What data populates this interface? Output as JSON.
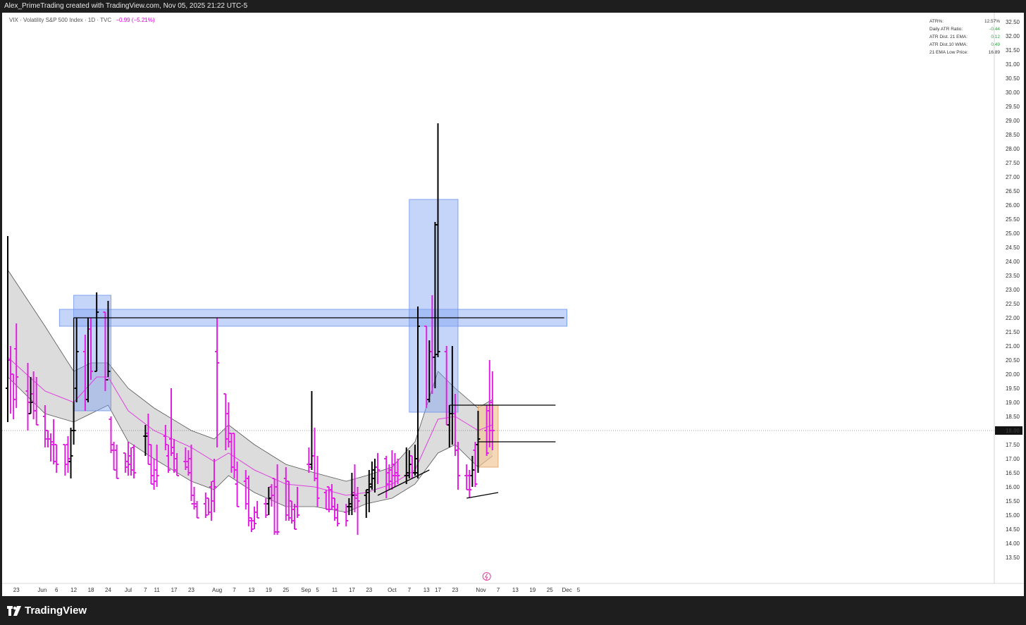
{
  "header": {
    "title": "Alex_PrimeTrading created with TradingView.com, Nov 05, 2025 21:22 UTC-5"
  },
  "legend": {
    "symbol": "VIX · Volatility S&P 500 Index · 1D · TVC",
    "change": "−0.99 (−5.21%)"
  },
  "stats": [
    {
      "label": "ATR%:",
      "value": "12.57%",
      "color": "#333333"
    },
    {
      "label": "Daily ATR Ratio:",
      "value": "-0.44",
      "color": "#2e9e3e"
    },
    {
      "label": "ATR Dist. 21 EMA:",
      "value": "0.12",
      "color": "#2e9e3e"
    },
    {
      "label": "ATR Dist.10 WMA:",
      "value": "0.49",
      "color": "#2e9e3e"
    },
    {
      "label": "21 EMA Low Price:",
      "value": "16.89",
      "color": "#333333"
    }
  ],
  "brand": {
    "name": "TradingView"
  },
  "colors": {
    "down": "#e020e0",
    "up": "#000000",
    "ema": "#e040e0",
    "band_fill": "#d8d8d8",
    "box_fill": "#7ea2f2",
    "orange_box": "#f0c89a"
  },
  "chart_data": {
    "type": "ohlc",
    "ylim": [
      13.25,
      32.75
    ],
    "y_ticks": [
      "13.50",
      "14.00",
      "14.50",
      "15.00",
      "15.50",
      "16.00",
      "16.50",
      "17.00",
      "17.50",
      "18.00",
      "18.50",
      "19.00",
      "19.50",
      "20.00",
      "20.50",
      "21.00",
      "21.50",
      "22.00",
      "22.50",
      "23.00",
      "23.50",
      "24.00",
      "24.50",
      "25.00",
      "25.50",
      "26.00",
      "26.50",
      "27.00",
      "27.50",
      "28.00",
      "28.50",
      "29.00",
      "29.50",
      "30.00",
      "30.50",
      "31.00",
      "31.50",
      "32.00",
      "32.50"
    ],
    "x_labels": [
      "23",
      "Jun",
      "6",
      "12",
      "18",
      "24",
      "Jul",
      "7",
      "11",
      "17",
      "23",
      "Aug",
      "7",
      "13",
      "19",
      "25",
      "Sep",
      "5",
      "11",
      "17",
      "23",
      "Oct",
      "7",
      "13",
      "17",
      "23",
      "Nov",
      "7",
      "13",
      "19",
      "25",
      "Dec",
      "5"
    ],
    "x_label_dates": [
      "2025-05-23",
      "2025-06-01",
      "2025-06-06",
      "2025-06-12",
      "2025-06-18",
      "2025-06-24",
      "2025-07-01",
      "2025-07-07",
      "2025-07-11",
      "2025-07-17",
      "2025-07-23",
      "2025-08-01",
      "2025-08-07",
      "2025-08-13",
      "2025-08-19",
      "2025-08-25",
      "2025-09-01",
      "2025-09-05",
      "2025-09-11",
      "2025-09-17",
      "2025-09-23",
      "2025-10-01",
      "2025-10-07",
      "2025-10-13",
      "2025-10-17",
      "2025-10-23",
      "2025-11-01",
      "2025-11-07",
      "2025-11-13",
      "2025-11-19",
      "2025-11-25",
      "2025-12-01",
      "2025-12-05"
    ],
    "last_price": "18.00",
    "bars": [
      [
        "2025-05-20",
        19.5,
        24.9,
        18.3,
        20.5
      ],
      [
        "2025-05-21",
        20.5,
        21.0,
        18.6,
        20.0
      ],
      [
        "2025-05-22",
        20.0,
        20.0,
        18.4,
        19.1
      ],
      [
        "2025-05-23",
        20.9,
        21.8,
        18.8,
        19.9
      ],
      [
        "2025-05-27",
        19.4,
        20.4,
        18.0,
        19.0
      ],
      [
        "2025-05-28",
        18.6,
        19.9,
        18.6,
        19.0
      ],
      [
        "2025-05-29",
        19.3,
        20.1,
        18.4,
        18.7
      ],
      [
        "2025-05-30",
        18.7,
        19.9,
        18.2,
        18.2
      ],
      [
        "2025-06-02",
        18.5,
        18.9,
        17.4,
        17.7
      ],
      [
        "2025-06-03",
        18.0,
        18.0,
        17.4,
        17.7
      ],
      [
        "2025-06-04",
        17.7,
        17.9,
        16.9,
        17.6
      ],
      [
        "2025-06-05",
        17.5,
        18.4,
        16.8,
        16.9
      ],
      [
        "2025-06-06",
        17.5,
        17.5,
        16.5,
        16.8
      ],
      [
        "2025-06-09",
        17.5,
        17.5,
        16.4,
        16.8
      ],
      [
        "2025-06-10",
        17.5,
        17.8,
        16.5,
        17.0
      ],
      [
        "2025-06-11",
        16.9,
        18.1,
        16.3,
        17.1
      ],
      [
        "2025-06-12",
        18.0,
        19.0,
        17.5,
        18.0
      ],
      [
        "2025-06-13",
        19.5,
        22.0,
        19.0,
        20.8
      ],
      [
        "2025-06-16",
        20.8,
        21.4,
        18.7,
        19.1
      ],
      [
        "2025-06-17",
        19.1,
        22.0,
        19.0,
        21.6
      ],
      [
        "2025-06-18",
        21.6,
        22.0,
        19.8,
        20.1
      ],
      [
        "2025-06-20",
        20.1,
        22.9,
        20.1,
        22.2
      ],
      [
        "2025-06-23",
        22.2,
        22.2,
        19.4,
        19.8
      ],
      [
        "2025-06-24",
        19.8,
        22.6,
        19.9,
        20.1
      ],
      [
        "2025-06-25",
        18.4,
        18.5,
        17.2,
        17.3
      ],
      [
        "2025-06-26",
        17.5,
        17.6,
        16.6,
        16.6
      ],
      [
        "2025-06-27",
        17.3,
        17.5,
        16.3,
        16.3
      ],
      [
        "2025-06-30",
        17.2,
        17.2,
        16.5,
        16.7
      ],
      [
        "2025-07-01",
        16.9,
        17.6,
        16.4,
        16.8
      ],
      [
        "2025-07-02",
        17.1,
        17.4,
        16.4,
        16.6
      ],
      [
        "2025-07-03",
        17.4,
        17.5,
        16.3,
        16.5
      ],
      [
        "2025-07-07",
        17.8,
        18.2,
        17.1,
        17.8
      ],
      [
        "2025-07-08",
        17.9,
        18.6,
        16.8,
        16.8
      ],
      [
        "2025-07-09",
        17.5,
        17.5,
        16.1,
        16.1
      ],
      [
        "2025-07-10",
        16.4,
        17.0,
        15.9,
        16.2
      ],
      [
        "2025-07-11",
        16.6,
        17.5,
        16.0,
        16.4
      ],
      [
        "2025-07-14",
        17.8,
        18.2,
        17.3,
        17.5
      ],
      [
        "2025-07-15",
        17.1,
        17.5,
        16.5,
        16.6
      ],
      [
        "2025-07-16",
        17.7,
        19.5,
        17.1,
        17.2
      ],
      [
        "2025-07-17",
        17.4,
        17.7,
        16.5,
        16.6
      ],
      [
        "2025-07-18",
        17.0,
        17.2,
        16.4,
        16.4
      ],
      [
        "2025-07-21",
        16.9,
        17.4,
        16.6,
        16.7
      ],
      [
        "2025-07-22",
        16.9,
        17.3,
        16.4,
        16.5
      ],
      [
        "2025-07-23",
        17.0,
        17.5,
        15.5,
        15.4
      ],
      [
        "2025-07-24",
        15.7,
        16.0,
        15.2,
        15.4
      ],
      [
        "2025-07-25",
        15.3,
        15.5,
        14.9,
        14.9
      ],
      [
        "2025-07-28",
        15.4,
        15.8,
        14.9,
        15.0
      ],
      [
        "2025-07-29",
        15.6,
        15.6,
        15.0,
        15.1
      ],
      [
        "2025-07-30",
        16.0,
        16.2,
        14.8,
        15.5
      ],
      [
        "2025-07-31",
        16.2,
        17.0,
        15.1,
        16.0
      ],
      [
        "2025-08-01",
        20.8,
        22.0,
        17.4,
        20.4
      ],
      [
        "2025-08-04",
        19.3,
        19.3,
        17.3,
        17.7
      ],
      [
        "2025-08-05",
        18.6,
        19.0,
        17.4,
        17.6
      ],
      [
        "2025-08-06",
        17.9,
        17.9,
        16.5,
        16.7
      ],
      [
        "2025-08-07",
        17.9,
        17.9,
        16.3,
        16.6
      ],
      [
        "2025-08-08",
        16.1,
        16.9,
        15.3,
        15.3
      ],
      [
        "2025-08-11",
        16.2,
        16.6,
        15.2,
        15.4
      ],
      [
        "2025-08-12",
        16.3,
        16.4,
        14.6,
        14.8
      ],
      [
        "2025-08-13",
        14.9,
        14.9,
        14.4,
        14.5
      ],
      [
        "2025-08-14",
        14.8,
        15.3,
        14.5,
        14.7
      ],
      [
        "2025-08-15",
        15.1,
        15.5,
        14.9,
        14.9
      ],
      [
        "2025-08-18",
        15.4,
        15.6,
        14.9,
        15.0
      ],
      [
        "2025-08-19",
        15.4,
        16.0,
        15.0,
        15.6
      ],
      [
        "2025-08-20",
        16.0,
        16.1,
        15.3,
        15.7
      ],
      [
        "2025-08-21",
        16.3,
        16.3,
        14.3,
        14.4
      ],
      [
        "2025-08-22",
        16.0,
        16.8,
        14.3,
        14.4
      ],
      [
        "2025-08-25",
        16.3,
        16.7,
        14.8,
        15.0
      ],
      [
        "2025-08-26",
        16.2,
        16.2,
        14.8,
        14.9
      ],
      [
        "2025-08-27",
        15.5,
        15.5,
        14.7,
        14.8
      ],
      [
        "2025-08-28",
        15.2,
        15.4,
        14.5,
        14.5
      ],
      [
        "2025-08-29",
        15.3,
        16.0,
        14.9,
        15.0
      ],
      [
        "2025-09-02",
        16.8,
        17.4,
        16.5,
        16.7
      ],
      [
        "2025-09-03",
        16.8,
        19.4,
        16.6,
        17.1
      ],
      [
        "2025-09-04",
        17.1,
        18.1,
        16.2,
        16.3
      ],
      [
        "2025-09-05",
        16.3,
        17.1,
        15.3,
        15.6
      ],
      [
        "2025-09-08",
        15.8,
        15.9,
        15.2,
        15.2
      ],
      [
        "2025-09-09",
        16.0,
        16.0,
        15.1,
        15.2
      ],
      [
        "2025-09-10",
        15.9,
        16.1,
        15.2,
        15.3
      ],
      [
        "2025-09-11",
        15.6,
        15.6,
        14.8,
        14.9
      ],
      [
        "2025-09-12",
        15.2,
        15.4,
        14.6,
        14.7
      ],
      [
        "2025-09-15",
        15.1,
        15.4,
        14.6,
        14.8
      ],
      [
        "2025-09-16",
        15.3,
        15.6,
        15.0,
        15.4
      ],
      [
        "2025-09-17",
        15.3,
        16.5,
        15.0,
        15.7
      ],
      [
        "2025-09-18",
        15.8,
        16.8,
        15.1,
        15.6
      ],
      [
        "2025-09-19",
        15.7,
        16.0,
        14.3,
        15.5
      ],
      [
        "2025-09-22",
        15.7,
        15.9,
        14.9,
        15.9
      ],
      [
        "2025-09-23",
        15.8,
        16.6,
        15.1,
        16.1
      ],
      [
        "2025-09-24",
        16.0,
        16.9,
        15.9,
        16.3
      ],
      [
        "2025-09-25",
        16.6,
        17.0,
        15.8,
        16.7
      ],
      [
        "2025-09-26",
        16.7,
        17.2,
        16.1,
        16.6
      ],
      [
        "2025-09-29",
        17.0,
        17.1,
        15.6,
        16.1
      ],
      [
        "2025-09-30",
        16.5,
        16.8,
        15.9,
        16.2
      ],
      [
        "2025-10-01",
        16.6,
        17.3,
        15.9,
        16.4
      ],
      [
        "2025-10-02",
        16.8,
        17.2,
        16.0,
        16.4
      ],
      [
        "2025-10-03",
        16.5,
        17.0,
        16.1,
        16.4
      ],
      [
        "2025-10-06",
        16.4,
        17.4,
        16.1,
        16.5
      ],
      [
        "2025-10-07",
        16.4,
        17.3,
        16.3,
        16.8
      ],
      [
        "2025-10-08",
        17.1,
        17.1,
        16.3,
        16.5
      ],
      [
        "2025-10-09",
        16.5,
        17.5,
        16.4,
        17.0
      ],
      [
        "2025-10-10",
        16.5,
        22.4,
        16.3,
        21.7
      ],
      [
        "2025-10-13",
        21.7,
        21.7,
        18.8,
        19.1
      ],
      [
        "2025-10-14",
        19.1,
        21.2,
        19.0,
        20.8
      ],
      [
        "2025-10-15",
        20.8,
        22.8,
        19.3,
        20.6
      ],
      [
        "2025-10-16",
        20.6,
        25.4,
        19.5,
        25.3
      ],
      [
        "2025-10-17",
        20.7,
        28.9,
        20.6,
        20.8
      ],
      [
        "2025-10-20",
        20.8,
        21.0,
        18.2,
        18.2
      ],
      [
        "2025-10-21",
        18.2,
        18.9,
        17.4,
        18.6
      ],
      [
        "2025-10-22",
        18.6,
        21.0,
        17.5,
        18.6
      ],
      [
        "2025-10-23",
        18.6,
        19.3,
        17.1,
        17.3
      ],
      [
        "2025-10-24",
        17.3,
        17.6,
        15.9,
        16.4
      ],
      [
        "2025-10-27",
        16.4,
        16.8,
        15.9,
        15.9
      ],
      [
        "2025-10-28",
        16.4,
        16.6,
        15.6,
        15.9
      ],
      [
        "2025-10-29",
        16.4,
        17.1,
        16.0,
        16.6
      ],
      [
        "2025-10-30",
        17.3,
        17.6,
        16.0,
        16.1
      ],
      [
        "2025-10-31",
        17.5,
        18.7,
        16.5,
        17.7
      ],
      [
        "2025-11-03",
        18.0,
        18.9,
        17.1,
        17.2
      ],
      [
        "2025-11-04",
        18.7,
        20.5,
        17.4,
        18.0
      ],
      [
        "2025-11-05",
        19.0,
        20.1,
        17.3,
        18.0
      ]
    ],
    "ema21": [
      [
        "2025-05-20",
        20.6
      ],
      [
        "2025-06-02",
        19.4
      ],
      [
        "2025-06-12",
        19.0
      ],
      [
        "2025-06-20",
        19.9
      ],
      [
        "2025-06-24",
        19.9
      ],
      [
        "2025-07-01",
        18.7
      ],
      [
        "2025-07-10",
        18.0
      ],
      [
        "2025-07-23",
        17.4
      ],
      [
        "2025-07-31",
        16.9
      ],
      [
        "2025-08-05",
        17.2
      ],
      [
        "2025-08-14",
        16.6
      ],
      [
        "2025-08-25",
        16.1
      ],
      [
        "2025-09-04",
        16.0
      ],
      [
        "2025-09-15",
        15.7
      ],
      [
        "2025-09-22",
        15.8
      ],
      [
        "2025-10-01",
        16.1
      ],
      [
        "2025-10-09",
        16.6
      ],
      [
        "2025-10-17",
        18.4
      ],
      [
        "2025-10-23",
        18.5
      ],
      [
        "2025-10-31",
        18.0
      ],
      [
        "2025-11-05",
        18.2
      ]
    ],
    "band_upper": [
      [
        "2025-05-20",
        23.7
      ],
      [
        "2025-06-02",
        21.7
      ],
      [
        "2025-06-12",
        20.1
      ],
      [
        "2025-06-18",
        20.4
      ],
      [
        "2025-06-24",
        20.4
      ],
      [
        "2025-07-01",
        19.5
      ],
      [
        "2025-07-10",
        18.8
      ],
      [
        "2025-07-23",
        18.0
      ],
      [
        "2025-07-31",
        17.7
      ],
      [
        "2025-08-05",
        18.2
      ],
      [
        "2025-08-14",
        17.5
      ],
      [
        "2025-08-25",
        16.8
      ],
      [
        "2025-09-04",
        16.5
      ],
      [
        "2025-09-15",
        16.2
      ],
      [
        "2025-09-22",
        16.4
      ],
      [
        "2025-10-01",
        16.7
      ],
      [
        "2025-10-09",
        17.6
      ],
      [
        "2025-10-17",
        20.1
      ],
      [
        "2025-10-23",
        19.5
      ],
      [
        "2025-10-31",
        18.8
      ],
      [
        "2025-11-05",
        19.1
      ]
    ],
    "band_lower": [
      [
        "2025-05-20",
        19.9
      ],
      [
        "2025-06-02",
        18.6
      ],
      [
        "2025-06-12",
        18.3
      ],
      [
        "2025-06-18",
        18.6
      ],
      [
        "2025-06-24",
        18.9
      ],
      [
        "2025-07-01",
        17.6
      ],
      [
        "2025-07-10",
        17.0
      ],
      [
        "2025-07-23",
        16.2
      ],
      [
        "2025-07-31",
        15.9
      ],
      [
        "2025-08-05",
        16.4
      ],
      [
        "2025-08-14",
        15.8
      ],
      [
        "2025-08-25",
        15.3
      ],
      [
        "2025-09-04",
        15.3
      ],
      [
        "2025-09-15",
        15.1
      ],
      [
        "2025-09-22",
        15.4
      ],
      [
        "2025-10-01",
        15.6
      ],
      [
        "2025-10-09",
        16.1
      ],
      [
        "2025-10-17",
        17.2
      ],
      [
        "2025-10-23",
        17.5
      ],
      [
        "2025-10-31",
        16.7
      ],
      [
        "2025-11-05",
        17.1
      ]
    ],
    "annotations": [
      {
        "type": "box",
        "x0": "2025-06-12",
        "x1": "2025-06-25",
        "y0": 18.7,
        "y1": 22.8
      },
      {
        "type": "box",
        "x0": "2025-06-07",
        "x1": "2025-12-01",
        "y0": 21.7,
        "y1": 22.3
      },
      {
        "type": "box",
        "x0": "2025-10-07",
        "x1": "2025-10-24",
        "y0": 18.65,
        "y1": 26.2
      },
      {
        "type": "box_orange",
        "x0": "2025-10-31",
        "x1": "2025-11-07",
        "y0": 16.7,
        "y1": 18.9
      },
      {
        "type": "hline",
        "x0": "2025-06-12",
        "x1": "2025-11-30",
        "y": 22.0
      },
      {
        "type": "hline",
        "x0": "2025-10-21",
        "x1": "2025-11-27",
        "y": 18.9
      },
      {
        "type": "hline",
        "x0": "2025-10-31",
        "x1": "2025-11-27",
        "y": 17.6
      },
      {
        "type": "trendline",
        "x0": "2025-09-26",
        "y0": 15.7,
        "x1": "2025-10-14",
        "y1": 16.6
      },
      {
        "type": "trendline",
        "x0": "2025-10-27",
        "y0": 15.6,
        "x1": "2025-11-07",
        "y1": 15.8
      }
    ]
  }
}
